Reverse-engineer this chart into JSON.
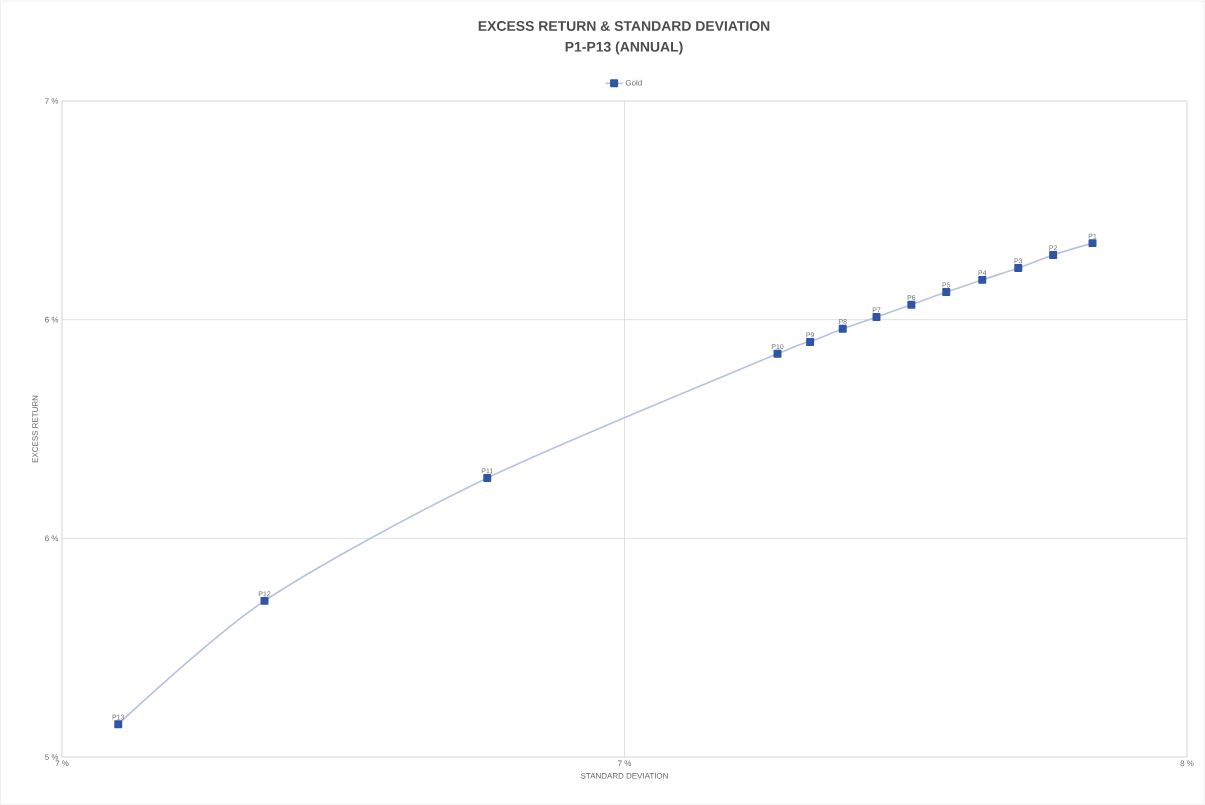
{
  "chart_data": {
    "type": "line",
    "title": "EXCESS RETURN & STANDARD DEVIATION",
    "subtitle": "P1-P13 (ANNUAL)",
    "xlabel": "STANDARD DEVIATION",
    "ylabel": "EXCESS RETURN",
    "x": [
      7.416,
      7.381,
      7.35,
      7.318,
      7.286,
      7.255,
      7.224,
      7.194,
      7.165,
      7.136,
      6.878,
      6.68,
      6.55
    ],
    "series": [
      {
        "name": "Gold",
        "color": "#2f55a4",
        "values": [
          6.175,
          6.148,
          6.118,
          6.091,
          6.063,
          6.034,
          6.006,
          5.979,
          5.949,
          5.922,
          5.638,
          5.357,
          5.075
        ],
        "value_labels": [
          "P1",
          "P2",
          "P3",
          "P4",
          "P5",
          "P6",
          "P7",
          "P8",
          "P9",
          "P10",
          "P11",
          "P12",
          "P13"
        ]
      }
    ],
    "xlim": [
      6.5,
      7.5
    ],
    "ylim": [
      5.0,
      6.5
    ],
    "xticks": [
      {
        "value": 6.5,
        "label": "7 %"
      },
      {
        "value": 7.0,
        "label": "7 %"
      },
      {
        "value": 7.5,
        "label": "8 %"
      }
    ],
    "yticks": [
      {
        "value": 5.0,
        "label": "5 %"
      },
      {
        "value": 5.5,
        "label": "6 %"
      },
      {
        "value": 6.0,
        "label": "6 %"
      },
      {
        "value": 6.5,
        "label": "7 %"
      }
    ],
    "grid": true,
    "legend": "top",
    "marker": "square",
    "line_style": "solid"
  }
}
